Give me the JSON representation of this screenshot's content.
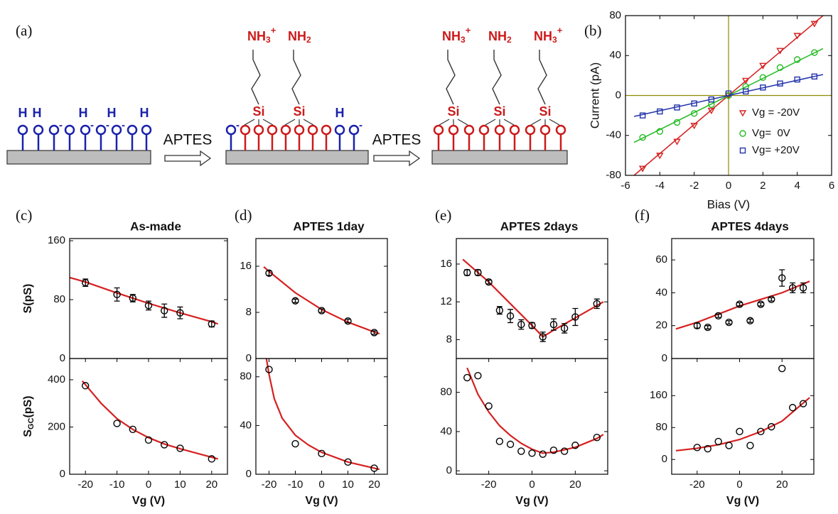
{
  "panel_labels": [
    "(a)",
    "(b)",
    "(c)",
    "(d)",
    "(e)",
    "(f)"
  ],
  "diagram": {
    "reagents": [
      "APTES",
      "APTES"
    ],
    "surface_1": {
      "h_labels": [
        "H",
        "H",
        "H",
        "H",
        "H"
      ],
      "charges": [
        "-",
        "-",
        "-",
        "-"
      ]
    },
    "surface_2": {
      "groups": [
        {
          "base": "NH",
          "sub": "3",
          "sup": "+"
        },
        {
          "base": "NH",
          "sub": "2"
        }
      ],
      "silicon": [
        "Si",
        "Si"
      ],
      "h_labels": [
        "H"
      ],
      "charges": [
        "-",
        "-"
      ]
    },
    "surface_3": {
      "groups": [
        {
          "base": "NH",
          "sub": "3",
          "sup": "+"
        },
        {
          "base": "NH",
          "sub": "2"
        },
        {
          "base": "NH",
          "sub": "3",
          "sup": "+"
        }
      ],
      "silicon": [
        "Si",
        "Si",
        "Si"
      ]
    }
  },
  "chart_data": [
    {
      "type": "scatter",
      "xlabel": "Bias (V)",
      "ylabel": "Current (pA)",
      "xlim": [
        -6,
        6
      ],
      "ylim": [
        -80,
        80
      ],
      "xticks": [
        -6,
        -4,
        -2,
        0,
        2,
        4,
        6
      ],
      "yticks": [
        -80,
        -40,
        0,
        40,
        80
      ],
      "zero_lines": true,
      "zero_line_color": "#8c8c00",
      "legend": "lower right",
      "series": [
        {
          "name": "Vg = -20V",
          "color": "#d62020",
          "marker": "triangle",
          "x": [
            -5,
            -4,
            -3,
            -2,
            -1,
            0,
            1,
            2,
            3,
            4,
            5
          ],
          "values": [
            -73,
            -60,
            -46,
            -30,
            -15,
            0,
            15,
            30,
            45,
            60,
            72
          ],
          "fit": {
            "x": [
              -5.5,
              5.5
            ],
            "values": [
              -80,
              80
            ]
          }
        },
        {
          "name": "Vg=  0V",
          "color": "#22bb22",
          "marker": "circle",
          "x": [
            -5,
            -4,
            -3,
            -2,
            -1,
            0,
            1,
            2,
            3,
            4,
            5
          ],
          "values": [
            -42,
            -36,
            -27,
            -18,
            -9,
            0,
            9,
            18,
            28,
            36,
            43
          ],
          "fit": {
            "x": [
              -5.5,
              5.5
            ],
            "values": [
              -47,
              47
            ]
          }
        },
        {
          "name": "Vg= +20V",
          "color": "#2233aa",
          "marker": "square",
          "x": [
            -5,
            -4,
            -3,
            -2,
            -1,
            0,
            1,
            2,
            3,
            4,
            5
          ],
          "values": [
            -20,
            -16,
            -12,
            -8,
            -4,
            2,
            4,
            8,
            12,
            16,
            19
          ],
          "fit": {
            "x": [
              -5.5,
              5.5
            ],
            "values": [
              -21,
              21
            ]
          }
        }
      ]
    },
    {
      "type": "scatter",
      "title": "As-made",
      "ylabel": "S(pS)",
      "xlim": [
        -25,
        25
      ],
      "ylim": [
        0,
        163
      ],
      "yticks": [
        0,
        80,
        160
      ],
      "series": [
        {
          "color": "#000000",
          "marker": "circle",
          "x": [
            -20,
            -10,
            -5,
            0,
            5,
            10,
            20
          ],
          "values": [
            103,
            87,
            82,
            72,
            65,
            62,
            47
          ],
          "errors": [
            5,
            9,
            5,
            6,
            9,
            8,
            4
          ]
        }
      ],
      "fit": {
        "color": "#d62020",
        "x": [
          -25,
          -20,
          -10,
          0,
          10,
          20,
          22
        ],
        "values": [
          110,
          104,
          89,
          75,
          62,
          50,
          47
        ]
      }
    },
    {
      "type": "scatter",
      "xlabel": "Vg (V)",
      "ylabel": {
        "base": "S",
        "sub": "GC",
        "rest": "(pS)"
      },
      "xlim": [
        -25,
        25
      ],
      "ylim": [
        0,
        490
      ],
      "xticks": [
        -20,
        -10,
        0,
        10,
        20
      ],
      "yticks": [
        0,
        200,
        400
      ],
      "series": [
        {
          "color": "#000000",
          "marker": "circle",
          "x": [
            -20,
            -10,
            -5,
            0,
            5,
            10,
            20
          ],
          "values": [
            375,
            215,
            190,
            145,
            125,
            110,
            65
          ]
        }
      ],
      "fit": {
        "color": "#d62020",
        "x": [
          -21,
          -15,
          -10,
          -5,
          0,
          5,
          10,
          15,
          20,
          22
        ],
        "values": [
          395,
          300,
          235,
          190,
          155,
          128,
          108,
          90,
          72,
          65
        ]
      }
    },
    {
      "type": "scatter",
      "title": "APTES 1day",
      "xlim": [
        -25,
        25
      ],
      "ylim": [
        0,
        20.8
      ],
      "yticks": [
        0,
        8,
        16
      ],
      "series": [
        {
          "color": "#000000",
          "marker": "circle",
          "x": [
            -20,
            -10,
            0,
            10,
            20
          ],
          "values": [
            14.8,
            10,
            8.3,
            6.5,
            4.5
          ],
          "errors": [
            0.4,
            0.3,
            0.3,
            0.3,
            0.3
          ]
        }
      ],
      "fit": {
        "color": "#d62020",
        "x": [
          -22,
          -20,
          -10,
          0,
          10,
          20,
          22
        ],
        "values": [
          15.9,
          15.1,
          11.4,
          8.5,
          6.3,
          4.6,
          4.3
        ]
      }
    },
    {
      "type": "scatter",
      "xlabel": "Vg (V)",
      "xlim": [
        -25,
        25
      ],
      "ylim": [
        0,
        95
      ],
      "xticks": [
        -20,
        -10,
        0,
        10,
        20
      ],
      "yticks": [
        0,
        40,
        80
      ],
      "series": [
        {
          "color": "#000000",
          "marker": "circle",
          "x": [
            -20,
            -10,
            0,
            10,
            20
          ],
          "values": [
            86,
            25,
            17,
            10,
            5
          ]
        }
      ],
      "fit": {
        "color": "#d62020",
        "x": [
          -21,
          -20,
          -18,
          -15,
          -10,
          -5,
          0,
          10,
          20,
          22
        ],
        "values": [
          95,
          82,
          62,
          46,
          32,
          24,
          18,
          10,
          5,
          4
        ]
      }
    },
    {
      "type": "scatter",
      "title": "APTES 2days",
      "xlim": [
        -35,
        35
      ],
      "ylim": [
        6,
        18.7
      ],
      "yticks": [
        8,
        12,
        16
      ],
      "series": [
        {
          "color": "#000000",
          "marker": "circle",
          "x": [
            -30,
            -25,
            -20,
            -15,
            -10,
            -5,
            0,
            5,
            10,
            15,
            20,
            30
          ],
          "values": [
            15.1,
            15.1,
            14.1,
            11.1,
            10.5,
            9.6,
            9.5,
            8.3,
            9.6,
            9.2,
            10.4,
            11.8
          ],
          "errors": [
            0.3,
            0.3,
            0.2,
            0.4,
            0.7,
            0.5,
            0.3,
            0.5,
            0.6,
            0.5,
            0.9,
            0.5
          ]
        }
      ],
      "fit": {
        "color": "#d62020",
        "x": [
          -32,
          -20,
          -10,
          0,
          5,
          10,
          20,
          30,
          33
        ],
        "values": [
          16.5,
          14.1,
          11.8,
          9.5,
          8.3,
          9.0,
          10.3,
          11.6,
          12.0
        ]
      }
    },
    {
      "type": "scatter",
      "xlabel": "Vg (V)",
      "xlim": [
        -35,
        35
      ],
      "ylim": [
        -3.5,
        114.5
      ],
      "xticks": [
        -20,
        0,
        20
      ],
      "yticks": [
        0,
        40,
        80
      ],
      "series": [
        {
          "color": "#000000",
          "marker": "circle",
          "x": [
            -30,
            -25,
            -20,
            -15,
            -10,
            -5,
            0,
            5,
            10,
            15,
            20,
            30
          ],
          "values": [
            95,
            97,
            66,
            30,
            27,
            20,
            18,
            17,
            21,
            20,
            26,
            34
          ]
        }
      ],
      "fit": {
        "color": "#d62020",
        "x": [
          -30,
          -25,
          -20,
          -15,
          -10,
          -5,
          0,
          5,
          10,
          20,
          30,
          33
        ],
        "values": [
          105,
          78,
          60,
          46,
          36,
          28,
          22,
          18,
          19,
          24,
          33,
          37
        ]
      }
    },
    {
      "type": "scatter",
      "title": "APTES 4days",
      "xlim": [
        -32,
        35
      ],
      "ylim": [
        0,
        73
      ],
      "yticks": [
        0,
        20,
        40,
        60
      ],
      "series": [
        {
          "color": "#000000",
          "marker": "circle",
          "x": [
            -20,
            -15,
            -10,
            -5,
            0,
            5,
            10,
            15,
            20,
            25,
            30
          ],
          "values": [
            20,
            19,
            26,
            22,
            33,
            23,
            33,
            36,
            49,
            43,
            43
          ],
          "errors": [
            1.5,
            1,
            1,
            1,
            1,
            1,
            1,
            1,
            5,
            3,
            3
          ]
        }
      ],
      "fit": {
        "color": "#d62020",
        "x": [
          -30,
          -20,
          -10,
          0,
          10,
          20,
          33
        ],
        "values": [
          18,
          22,
          27,
          32,
          36,
          40,
          47
        ]
      }
    },
    {
      "type": "scatter",
      "xlabel": "Vg (V)",
      "xlim": [
        -32,
        35
      ],
      "ylim": [
        -37,
        253
      ],
      "xticks": [
        -20,
        0,
        20
      ],
      "yticks": [
        0,
        80,
        160
      ],
      "series": [
        {
          "color": "#000000",
          "marker": "circle",
          "x": [
            -20,
            -15,
            -10,
            -5,
            0,
            5,
            10,
            15,
            20,
            25,
            30
          ],
          "values": [
            30,
            27,
            45,
            35,
            70,
            35,
            70,
            82,
            228,
            130,
            140
          ]
        }
      ],
      "fit": {
        "color": "#d62020",
        "x": [
          -30,
          -20,
          -10,
          0,
          10,
          20,
          33
        ],
        "values": [
          22,
          28,
          37,
          50,
          70,
          96,
          155
        ]
      }
    }
  ]
}
